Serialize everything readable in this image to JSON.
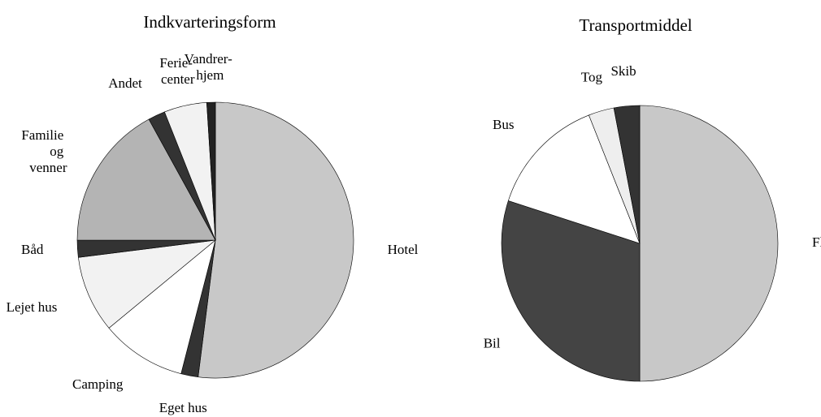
{
  "chart_data": [
    {
      "type": "pie",
      "title": "Indkvarteringsform",
      "categories": [
        "Hotel",
        "Eget hus",
        "Camping",
        "Lejet hus",
        "Båd",
        "Familie\nog\nvenner",
        "Andet",
        "Ferie-\ncenter",
        "Vandrer-\nhjem"
      ],
      "values": [
        52,
        2,
        10,
        9,
        2,
        17,
        2,
        5,
        1
      ],
      "colors": [
        "#c8c8c8",
        "#333333",
        "#ffffff",
        "#f2f2f2",
        "#333333",
        "#b4b4b4",
        "#333333",
        "#f2f2f2",
        "#222222"
      ]
    },
    {
      "type": "pie",
      "title": "Transportmiddel",
      "categories": [
        "Fly",
        "Bil",
        "Bus",
        "Tog",
        "Skib"
      ],
      "values": [
        50,
        30,
        14,
        3,
        3
      ],
      "colors": [
        "#c8c8c8",
        "#444444",
        "#ffffff",
        "#eeeeee",
        "#333333"
      ]
    }
  ]
}
